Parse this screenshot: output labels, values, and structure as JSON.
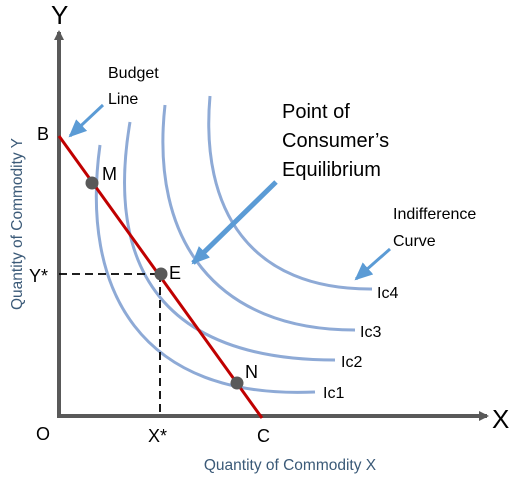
{
  "axes": {
    "y_letter": "Y",
    "x_letter": "X",
    "origin": "O",
    "y_title": "Quantity of Commodity Y",
    "x_title": "Quantity of Commodity X"
  },
  "budget_line": {
    "label_line1": "Budget",
    "label_line2": "Line",
    "point_b": "B",
    "point_c": "C"
  },
  "equilibrium": {
    "label_line1": "Point of",
    "label_line2": "Consumer’s",
    "label_line3": "Equilibrium",
    "point": "E",
    "x_star": "X*",
    "y_star": "Y*"
  },
  "points": {
    "m": "M",
    "n": "N"
  },
  "indifference": {
    "label_line1": "Indifference",
    "label_line2": "Curve",
    "curves": [
      "Ic1",
      "Ic2",
      "Ic3",
      "Ic4"
    ]
  },
  "colors": {
    "axis": "#595959",
    "budget_line": "#c00000",
    "curves": "#8eaad6",
    "arrows": "#5b9bd5",
    "points": "#595959",
    "axis_title": "#3b5a78"
  }
}
